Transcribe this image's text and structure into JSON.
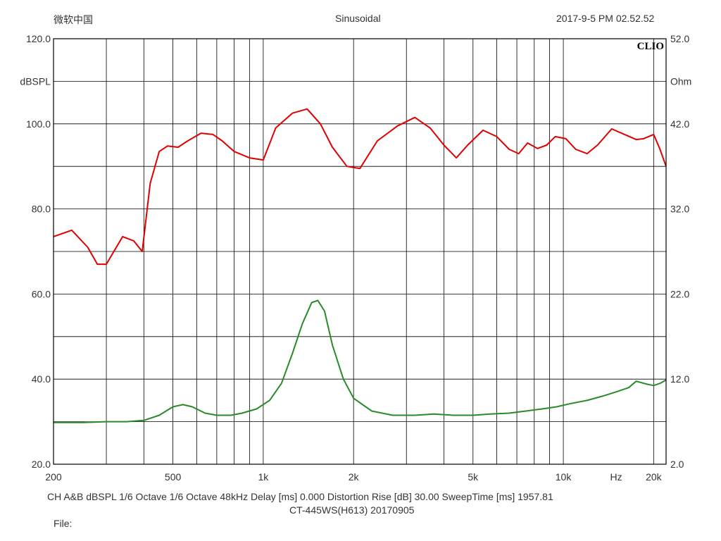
{
  "header": {
    "brand": "微软中国",
    "mode": "Sinusoidal",
    "timestamp": "2017-9-5 PM 02.52.52"
  },
  "footer": {
    "line1": "CH A&B   dBSPL   1/6 Octave   1/6 Octave   48kHz   Delay [ms] 0.000   Distortion Rise [dB] 30.00   SweepTime [ms] 1957.81",
    "line2": "CT-445WS(H613)  20170905",
    "file_label": "File:"
  },
  "chart_data": {
    "type": "line",
    "logo": "CLIO",
    "x_scale": "log",
    "xlim": [
      200,
      22000
    ],
    "x_tick_labels": [
      {
        "value": 200,
        "label": "200"
      },
      {
        "value": 500,
        "label": "500"
      },
      {
        "value": 1000,
        "label": "1k"
      },
      {
        "value": 2000,
        "label": "2k"
      },
      {
        "value": 5000,
        "label": "5k"
      },
      {
        "value": 10000,
        "label": "10k"
      },
      {
        "value": 15000,
        "label": "Hz"
      },
      {
        "value": 20000,
        "label": "20k"
      }
    ],
    "x_gridlines": [
      300,
      400,
      500,
      600,
      700,
      800,
      900,
      1000,
      2000,
      3000,
      4000,
      5000,
      6000,
      7000,
      8000,
      9000,
      10000,
      20000
    ],
    "y_left": {
      "label": "dBSPL",
      "lim": [
        20,
        120
      ],
      "ticks": [
        "20.0",
        "40.0",
        "60.0",
        "80.0",
        "100.0",
        "120.0"
      ]
    },
    "y_right": {
      "label": "Ohm",
      "lim": [
        2,
        52
      ],
      "ticks": [
        "2.0",
        "12.0",
        "22.0",
        "32.0",
        "42.0",
        "52.0"
      ]
    },
    "grid": true,
    "series": [
      {
        "color": "#e00000",
        "x": [
          200,
          230,
          260,
          280,
          300,
          340,
          370,
          395,
          420,
          450,
          480,
          520,
          560,
          620,
          680,
          730,
          800,
          900,
          1000,
          1100,
          1250,
          1400,
          1550,
          1700,
          1900,
          2100,
          2400,
          2800,
          3200,
          3600,
          4000,
          4400,
          4800,
          5400,
          6000,
          6600,
          7100,
          7600,
          8200,
          8800,
          9400,
          10200,
          11000,
          12000,
          13000,
          14500,
          16000,
          17500,
          18500,
          20000,
          21000,
          22000
        ],
        "y": [
          73.5,
          75,
          71,
          67,
          67,
          73.5,
          72.5,
          70,
          86,
          93.5,
          94.8,
          94.5,
          96,
          97.8,
          97.5,
          96,
          93.5,
          92,
          91.5,
          99,
          102.5,
          103.5,
          100,
          94.5,
          90,
          89.5,
          96,
          99.5,
          101.5,
          99,
          95,
          92,
          95,
          98.5,
          97,
          94,
          93,
          95.5,
          94.2,
          95,
          97,
          96.5,
          94,
          93,
          95,
          98.8,
          97.5,
          96.3,
          96.5,
          97.5,
          94,
          90
        ]
      },
      {
        "color": "#2a8a2a",
        "x": [
          200,
          250,
          300,
          350,
          400,
          450,
          500,
          540,
          580,
          640,
          700,
          780,
          850,
          950,
          1050,
          1150,
          1250,
          1350,
          1450,
          1520,
          1600,
          1700,
          1850,
          2000,
          2300,
          2700,
          3200,
          3700,
          4300,
          5000,
          5700,
          6600,
          7500,
          8500,
          9500,
          10500,
          12000,
          13500,
          15000,
          16500,
          17500,
          19000,
          20000,
          21000,
          22000
        ],
        "y": [
          29.8,
          29.8,
          30,
          30,
          30.3,
          31.5,
          33.5,
          34,
          33.5,
          32,
          31.5,
          31.5,
          32,
          33,
          35,
          39,
          46,
          53,
          58,
          58.5,
          56,
          48,
          40,
          35.5,
          32.5,
          31.5,
          31.5,
          31.8,
          31.5,
          31.5,
          31.8,
          32,
          32.5,
          33,
          33.5,
          34.2,
          35,
          36,
          37,
          38,
          39.5,
          38.8,
          38.5,
          39,
          39.8
        ]
      }
    ]
  }
}
